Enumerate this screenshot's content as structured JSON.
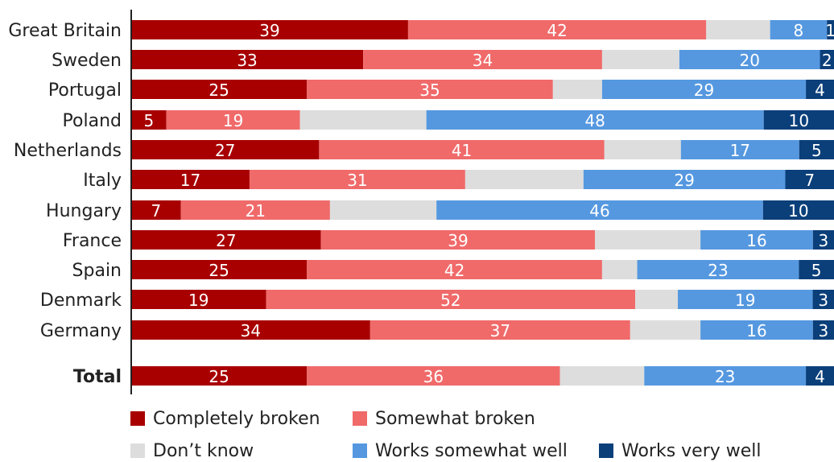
{
  "chart_data": {
    "type": "bar",
    "orientation": "horizontal",
    "stacked": true,
    "categories": [
      "Great Britain",
      "Sweden",
      "Portugal",
      "Poland",
      "Netherlands",
      "Italy",
      "Hungary",
      "France",
      "Spain",
      "Denmark",
      "Germany",
      "Total"
    ],
    "series": [
      {
        "name": "Completely broken",
        "color": "#a80000",
        "values": [
          39,
          33,
          25,
          5,
          27,
          17,
          7,
          27,
          25,
          19,
          34,
          25
        ],
        "value_labels": [
          "39",
          "33",
          "25",
          "5",
          "27",
          "17",
          "7",
          "27",
          "25",
          "19",
          "34",
          "25"
        ]
      },
      {
        "name": "Somewhat broken",
        "color": "#f06a6a",
        "values": [
          42,
          34,
          35,
          19,
          41,
          31,
          21,
          39,
          42,
          52,
          37,
          36
        ],
        "value_labels": [
          "42",
          "34",
          "35",
          "19",
          "41",
          "31",
          "21",
          "39",
          "42",
          "52",
          "37",
          "36"
        ]
      },
      {
        "name": "Don’t know",
        "color": "#dddddd",
        "values": [
          9,
          11,
          7,
          18,
          11,
          17,
          15,
          15,
          5,
          6,
          10,
          12
        ],
        "value_labels": [
          "",
          "",
          "",
          "",
          "",
          "",
          "",
          "",
          "",
          "",
          "",
          ""
        ]
      },
      {
        "name": "Works somewhat well",
        "color": "#5598e0",
        "values": [
          8,
          20,
          29,
          48,
          17,
          29,
          46,
          16,
          23,
          19,
          16,
          23
        ],
        "value_labels": [
          "8",
          "20",
          "29",
          "48",
          "17",
          "29",
          "46",
          "16",
          "23",
          "19",
          "16",
          "23"
        ]
      },
      {
        "name": "Works very well",
        "color": "#0b3f7a",
        "values": [
          1,
          2,
          4,
          10,
          5,
          7,
          10,
          3,
          5,
          3,
          3,
          4
        ],
        "value_labels": [
          "1",
          "2",
          "4",
          "10",
          "5",
          "7",
          "10",
          "3",
          "5",
          "3",
          "3",
          "4"
        ]
      }
    ],
    "xlim": [
      0,
      100
    ],
    "grid": false,
    "legend_position": "bottom",
    "title": "",
    "xlabel": "",
    "ylabel": ""
  }
}
